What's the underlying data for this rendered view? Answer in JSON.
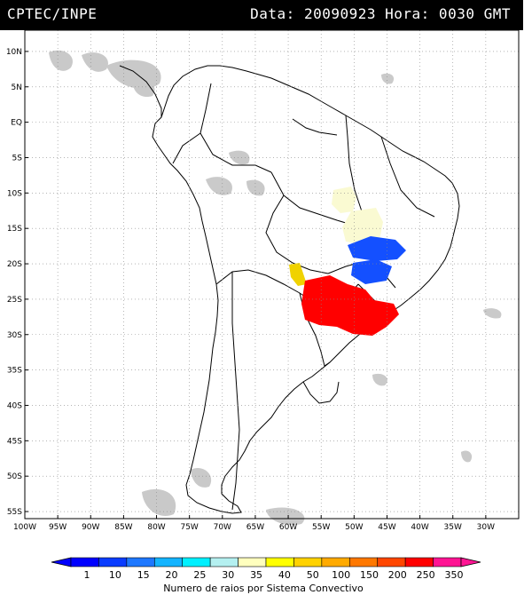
{
  "header": {
    "left": "CPTEC/INPE",
    "right": "Data: 20090923 Hora: 0030 GMT"
  },
  "axes": {
    "lon_min": -100,
    "lon_max": -25,
    "lat_min": -56,
    "lat_max": 13,
    "lat_labels": [
      "10N",
      "5N",
      "EQ",
      "5S",
      "10S",
      "15S",
      "20S",
      "25S",
      "30S",
      "35S",
      "40S",
      "45S",
      "50S",
      "55S"
    ],
    "lat_values": [
      10,
      5,
      0,
      -5,
      -10,
      -15,
      -20,
      -25,
      -30,
      -35,
      -40,
      -45,
      -50,
      -55
    ],
    "lon_labels": [
      "100W",
      "95W",
      "90W",
      "85W",
      "80W",
      "75W",
      "70W",
      "65W",
      "60W",
      "55W",
      "50W",
      "45W",
      "40W",
      "35W",
      "30W"
    ],
    "lon_values": [
      -100,
      -95,
      -90,
      -85,
      -80,
      -75,
      -70,
      -65,
      -60,
      -55,
      -50,
      -45,
      -40,
      -35,
      -30
    ]
  },
  "colors": {
    "cloud": "#c4c4c4",
    "border": "#000000",
    "grid": "#888888"
  },
  "colorbar": {
    "labels": [
      "1",
      "10",
      "15",
      "20",
      "25",
      "30",
      "35",
      "40",
      "50",
      "100",
      "150",
      "200",
      "250",
      "350"
    ],
    "colors": [
      "#0000ff",
      "#0a3cff",
      "#1e78ff",
      "#14b4ff",
      "#00f0ff",
      "#b4f0f0",
      "#ffffbe",
      "#ffff00",
      "#ffd200",
      "#ffaa00",
      "#ff7800",
      "#ff4600",
      "#ff0000",
      "#ff1493"
    ],
    "caption": "Numero de raios por Sistema Convectivo"
  },
  "lightning_systems": [
    {
      "label": "Numero de raios 30",
      "color": "#fafad2"
    },
    {
      "label": "Numero de raios 35",
      "color": "#fafad2"
    },
    {
      "label": "Numero de raios 10",
      "color": "#1450ff"
    },
    {
      "label": "Numero de raios 10",
      "color": "#1450ff"
    },
    {
      "label": "Numero de raios 40",
      "color": "#f0d200"
    },
    {
      "label": "Numero de raios 250",
      "color": "#ff0000"
    }
  ]
}
